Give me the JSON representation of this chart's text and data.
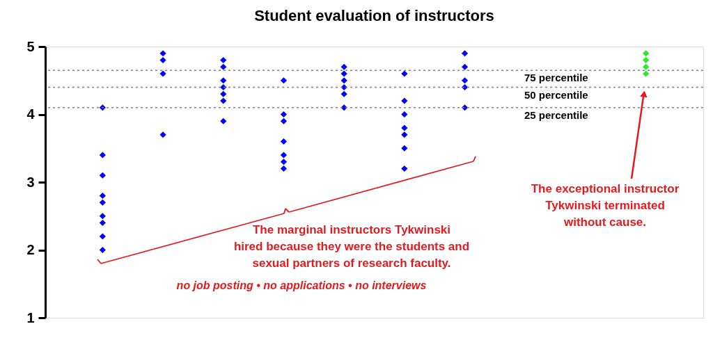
{
  "chart_data": {
    "type": "scatter",
    "title": "Student evaluation of instructors",
    "categories": [
      null,
      null,
      null,
      null,
      null,
      null,
      null,
      null,
      null,
      null
    ],
    "series": [
      {
        "color": "#0000ff",
        "values": [
          4.1,
          4.9,
          4.8,
          4.5,
          4.7,
          4.6,
          4.9,
          null,
          null,
          null
        ]
      },
      {
        "color": "#0000ff",
        "values": [
          3.4,
          4.8,
          4.7,
          4.0,
          4.6,
          4.2,
          4.7,
          null,
          null,
          null
        ]
      },
      {
        "color": "#0000ff",
        "values": [
          3.1,
          4.6,
          4.5,
          3.9,
          4.5,
          4.0,
          4.5,
          null,
          null,
          null
        ]
      },
      {
        "color": "#0000ff",
        "values": [
          2.8,
          3.7,
          4.4,
          3.6,
          4.4,
          3.8,
          4.4,
          null,
          null,
          null
        ]
      },
      {
        "color": "#0000ff",
        "values": [
          2.7,
          null,
          4.3,
          3.4,
          4.3,
          3.7,
          4.1,
          null,
          null,
          null
        ]
      },
      {
        "color": "#0000ff",
        "values": [
          2.5,
          null,
          4.2,
          3.3,
          4.1,
          3.5,
          null,
          null,
          null,
          null
        ]
      },
      {
        "color": "#0000ff",
        "values": [
          2.4,
          null,
          3.9,
          3.2,
          null,
          3.2,
          null,
          null,
          null,
          null
        ]
      },
      {
        "color": "#0000ff",
        "values": [
          2.2,
          null,
          null,
          null,
          null,
          null,
          null,
          null,
          null,
          null
        ]
      },
      {
        "color": "#0000ff",
        "values": [
          2.0,
          null,
          null,
          null,
          null,
          null,
          null,
          null,
          null,
          null
        ]
      },
      {
        "color": "#22ee22",
        "values": [
          null,
          null,
          null,
          null,
          null,
          null,
          null,
          null,
          null,
          4.9
        ]
      },
      {
        "color": "#22ee22",
        "values": [
          null,
          null,
          null,
          null,
          null,
          null,
          null,
          null,
          null,
          4.8
        ]
      },
      {
        "color": "#22ee22",
        "values": [
          null,
          null,
          null,
          null,
          null,
          null,
          null,
          null,
          null,
          4.7
        ]
      },
      {
        "color": "#22ee22",
        "values": [
          null,
          null,
          null,
          null,
          null,
          null,
          null,
          null,
          null,
          4.6
        ]
      }
    ],
    "ylim": [
      1,
      5
    ],
    "yticks": [
      1,
      2,
      3,
      4,
      5
    ],
    "tick_labels": "y",
    "marker": "diamond",
    "grid": false,
    "legend": false,
    "ref_lines": [
      {
        "axis": "y",
        "value": 4.65,
        "label": "75 percentile",
        "color": "#808080",
        "line_style": "dotted"
      },
      {
        "axis": "y",
        "value": 4.4,
        "label": "50 percentile",
        "color": "#808080",
        "line_style": "dotted"
      },
      {
        "axis": "y",
        "value": 4.1,
        "label": "25 percentile",
        "color": "#808080",
        "line_style": "dotted"
      }
    ],
    "annotations": [
      "The marginal instructors Tykwinski\nhired because they were the students and\nsexual partners of research faculty.",
      "no job posting • no applications • no interviews",
      "The exceptional instructor\nTykwinski terminated\nwithout cause."
    ]
  }
}
